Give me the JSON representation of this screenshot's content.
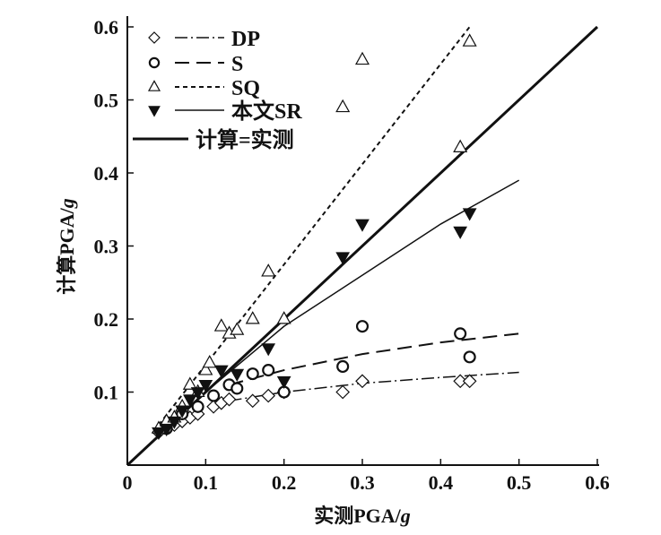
{
  "chart_data": {
    "type": "scatter",
    "title": "",
    "xlabel": "实测PGA/g",
    "ylabel": "计算PGA/g",
    "xlabel_main": "实测PGA/",
    "ylabel_main": "计算PGA/",
    "axis_unit": "g",
    "xlim": [
      0,
      0.6
    ],
    "ylim": [
      0,
      0.6
    ],
    "xticks": [
      "0",
      "0.1",
      "0.2",
      "0.3",
      "0.4",
      "0.5",
      "0.6"
    ],
    "yticks": [
      "0.1",
      "0.2",
      "0.3",
      "0.4",
      "0.5",
      "0.6"
    ],
    "xtick_values": [
      0,
      0.1,
      0.2,
      0.3,
      0.4,
      0.5,
      0.6
    ],
    "ytick_values": [
      0.1,
      0.2,
      0.3,
      0.4,
      0.5,
      0.6
    ],
    "grid": false,
    "legend_position": "top-left",
    "series": [
      {
        "name": "DP",
        "marker": "diamond",
        "line": "dash-dot",
        "points": [
          [
            0.04,
            0.045
          ],
          [
            0.05,
            0.05
          ],
          [
            0.06,
            0.055
          ],
          [
            0.07,
            0.06
          ],
          [
            0.08,
            0.065
          ],
          [
            0.09,
            0.07
          ],
          [
            0.11,
            0.08
          ],
          [
            0.12,
            0.085
          ],
          [
            0.13,
            0.09
          ],
          [
            0.16,
            0.088
          ],
          [
            0.18,
            0.095
          ],
          [
            0.2,
            0.1
          ],
          [
            0.275,
            0.1
          ],
          [
            0.3,
            0.115
          ],
          [
            0.425,
            0.115
          ],
          [
            0.437,
            0.115
          ]
        ],
        "fit": [
          [
            0.13,
            0.088
          ],
          [
            0.2,
            0.1
          ],
          [
            0.3,
            0.112
          ],
          [
            0.4,
            0.12
          ],
          [
            0.5,
            0.127
          ]
        ]
      },
      {
        "name": "S",
        "marker": "circle",
        "line": "dashed",
        "points": [
          [
            0.05,
            0.05
          ],
          [
            0.07,
            0.07
          ],
          [
            0.09,
            0.08
          ],
          [
            0.11,
            0.095
          ],
          [
            0.13,
            0.11
          ],
          [
            0.14,
            0.105
          ],
          [
            0.16,
            0.125
          ],
          [
            0.18,
            0.13
          ],
          [
            0.2,
            0.1
          ],
          [
            0.275,
            0.135
          ],
          [
            0.3,
            0.19
          ],
          [
            0.425,
            0.18
          ],
          [
            0.437,
            0.148
          ]
        ],
        "fit": [
          [
            0.13,
            0.11
          ],
          [
            0.2,
            0.13
          ],
          [
            0.3,
            0.152
          ],
          [
            0.4,
            0.168
          ],
          [
            0.5,
            0.18
          ]
        ]
      },
      {
        "name": "SQ",
        "marker": "triangle-up",
        "line": "dotted",
        "points": [
          [
            0.04,
            0.05
          ],
          [
            0.05,
            0.06
          ],
          [
            0.06,
            0.065
          ],
          [
            0.07,
            0.08
          ],
          [
            0.08,
            0.11
          ],
          [
            0.09,
            0.1
          ],
          [
            0.1,
            0.13
          ],
          [
            0.105,
            0.14
          ],
          [
            0.12,
            0.19
          ],
          [
            0.13,
            0.18
          ],
          [
            0.14,
            0.185
          ],
          [
            0.16,
            0.2
          ],
          [
            0.18,
            0.265
          ],
          [
            0.2,
            0.2
          ],
          [
            0.275,
            0.49
          ],
          [
            0.3,
            0.555
          ],
          [
            0.425,
            0.435
          ],
          [
            0.437,
            0.58
          ]
        ],
        "fit": [
          [
            0.04,
            0.055
          ],
          [
            0.437,
            0.6
          ]
        ]
      },
      {
        "name": "本文SR",
        "marker": "triangle-down-filled",
        "line": "solid-thin",
        "points": [
          [
            0.04,
            0.045
          ],
          [
            0.05,
            0.05
          ],
          [
            0.06,
            0.06
          ],
          [
            0.07,
            0.075
          ],
          [
            0.08,
            0.09
          ],
          [
            0.09,
            0.1
          ],
          [
            0.1,
            0.11
          ],
          [
            0.12,
            0.13
          ],
          [
            0.14,
            0.125
          ],
          [
            0.18,
            0.16
          ],
          [
            0.2,
            0.115
          ],
          [
            0.275,
            0.285
          ],
          [
            0.3,
            0.33
          ],
          [
            0.425,
            0.32
          ],
          [
            0.437,
            0.345
          ]
        ],
        "fit": [
          [
            0.1,
            0.1
          ],
          [
            0.2,
            0.19
          ],
          [
            0.3,
            0.26
          ],
          [
            0.4,
            0.33
          ],
          [
            0.5,
            0.39
          ]
        ]
      },
      {
        "name": "计算=实测",
        "marker": "none",
        "line": "solid-thick",
        "points": [],
        "fit": [
          [
            0,
            0
          ],
          [
            0.6,
            0.6
          ]
        ]
      }
    ]
  }
}
